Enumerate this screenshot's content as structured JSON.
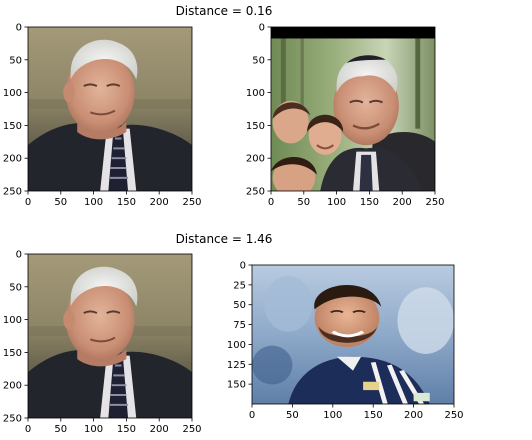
{
  "chart_data": [
    {
      "type": "image-grid",
      "title": "Distance = 0.16",
      "panels": [
        {
          "image": "portrait of an older white-haired man in a dark suit, seated",
          "xlim": [
            0,
            250
          ],
          "ylim": [
            250,
            0
          ],
          "xticks": [
            0,
            50,
            100,
            150,
            200,
            250
          ],
          "yticks": [
            0,
            50,
            100,
            150,
            200,
            250
          ]
        },
        {
          "image": "older white-haired man in a kippah, smiling children beside him, trees behind",
          "xlim": [
            0,
            250
          ],
          "ylim": [
            250,
            0
          ],
          "xticks": [
            0,
            50,
            100,
            150,
            200,
            250
          ],
          "yticks": [
            0,
            50,
            100,
            150,
            200,
            250
          ]
        }
      ]
    },
    {
      "type": "image-grid",
      "title": "Distance = 1.46",
      "panels": [
        {
          "image": "portrait of an older white-haired man in a dark suit, seated",
          "xlim": [
            0,
            250
          ],
          "ylim": [
            250,
            0
          ],
          "xticks": [
            0,
            50,
            100,
            150,
            200,
            250
          ],
          "yticks": [
            0,
            50,
            100,
            150,
            200,
            250
          ]
        },
        {
          "image": "smiling bearded young man in a navy and white striped jersey, stadium background",
          "xlim": [
            0,
            250
          ],
          "ylim": [
            175,
            0
          ],
          "xticks": [
            0,
            50,
            100,
            150,
            200,
            250
          ],
          "yticks": [
            0,
            25,
            50,
            75,
            100,
            125,
            150
          ]
        }
      ]
    }
  ]
}
